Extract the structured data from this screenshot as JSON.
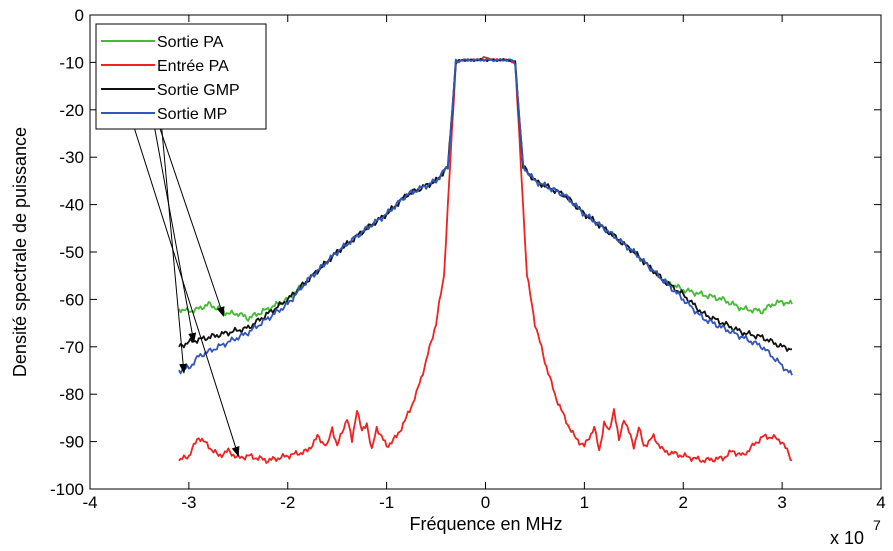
{
  "chart_data": {
    "type": "line",
    "xlabel": "Fréquence en MHz",
    "ylabel": "Densité spectrale de puissance",
    "x_multiplier_label": "x 10",
    "x_multiplier_exponent": "7",
    "xlim": [
      -4,
      4
    ],
    "ylim": [
      -100,
      0
    ],
    "x_ticks": [
      "-4",
      "-3",
      "-2",
      "-1",
      "0",
      "1",
      "2",
      "3",
      "4"
    ],
    "y_ticks": [
      "0",
      "-10",
      "-20",
      "-30",
      "-40",
      "-50",
      "-60",
      "-70",
      "-80",
      "-90",
      "-100"
    ],
    "grid": false,
    "legend_position": "top-left",
    "series": [
      {
        "name": "Sortie PA",
        "color": "#44bb33",
        "x": [
          -3.1,
          -3.0,
          -2.9,
          -2.8,
          -2.7,
          -2.6,
          -2.5,
          -2.4,
          -2.2,
          -2.0,
          -1.8,
          -1.5,
          -1.2,
          -1.0,
          -0.8,
          -0.5,
          -0.38,
          -0.3,
          -0.25,
          0.25,
          0.3,
          0.38,
          0.5,
          0.8,
          1.0,
          1.2,
          1.5,
          1.8,
          1.9,
          2.0,
          2.2,
          2.4,
          2.5,
          2.6,
          2.8,
          2.9,
          3.0,
          3.1
        ],
        "y": [
          -62,
          -62.5,
          -62,
          -61,
          -62,
          -63,
          -63,
          -64,
          -62,
          -60,
          -56,
          -50,
          -45,
          -42,
          -38,
          -35,
          -32,
          -10,
          -9.5,
          -9.5,
          -10,
          -32,
          -35,
          -38,
          -42,
          -45,
          -50,
          -56,
          -57,
          -58,
          -59,
          -60,
          -61,
          -62,
          -62.5,
          -61,
          -60.5,
          -61
        ]
      },
      {
        "name": "Entrée PA",
        "color": "#ee2222",
        "x": [
          -3.1,
          -3.0,
          -2.9,
          -2.8,
          -2.7,
          -2.6,
          -2.5,
          -2.4,
          -2.2,
          -2.0,
          -1.8,
          -1.7,
          -1.6,
          -1.55,
          -1.5,
          -1.45,
          -1.4,
          -1.35,
          -1.3,
          -1.25,
          -1.2,
          -1.15,
          -1.1,
          -1.0,
          -0.9,
          -0.8,
          -0.7,
          -0.6,
          -0.5,
          -0.42,
          -0.38,
          -0.34,
          -0.3,
          -0.2,
          -0.1,
          0,
          0.1,
          0.2,
          0.3,
          0.34,
          0.38,
          0.42,
          0.5,
          0.6,
          0.7,
          0.8,
          0.9,
          1.0,
          1.1,
          1.15,
          1.2,
          1.25,
          1.3,
          1.35,
          1.4,
          1.45,
          1.5,
          1.55,
          1.6,
          1.7,
          1.8,
          2.0,
          2.2,
          2.4,
          2.5,
          2.6,
          2.7,
          2.8,
          2.9,
          3.0,
          3.1
        ],
        "y": [
          -94,
          -93,
          -89,
          -91,
          -93,
          -92,
          -93.5,
          -93,
          -94,
          -93,
          -92,
          -89,
          -91,
          -87,
          -91,
          -88,
          -85,
          -90,
          -83,
          -88,
          -86,
          -92,
          -87,
          -91,
          -89,
          -85,
          -80,
          -73,
          -65,
          -55,
          -40,
          -25,
          -10,
          -9.5,
          -9.5,
          -9,
          -9.5,
          -9.5,
          -10,
          -25,
          -40,
          -55,
          -65,
          -73,
          -80,
          -85,
          -89,
          -91,
          -87,
          -92,
          -86,
          -88,
          -83,
          -90,
          -85,
          -88,
          -91,
          -87,
          -91,
          -89,
          -92,
          -93,
          -94,
          -93.5,
          -92,
          -93,
          -91,
          -89,
          -89,
          -90,
          -94
        ]
      },
      {
        "name": "Sortie GMP",
        "color": "#111111",
        "x": [
          -3.1,
          -3.0,
          -2.9,
          -2.8,
          -2.7,
          -2.6,
          -2.5,
          -2.4,
          -2.2,
          -2.0,
          -1.8,
          -1.5,
          -1.2,
          -1.0,
          -0.8,
          -0.5,
          -0.38,
          -0.3,
          -0.25,
          0.25,
          0.3,
          0.38,
          0.5,
          0.8,
          1.0,
          1.2,
          1.5,
          1.8,
          2.0,
          2.2,
          2.4,
          2.5,
          2.6,
          2.8,
          2.9,
          3.0,
          3.1
        ],
        "y": [
          -70,
          -69,
          -68.5,
          -68,
          -67.5,
          -67,
          -66.5,
          -66,
          -63,
          -60,
          -56,
          -50,
          -45,
          -42,
          -38,
          -35,
          -32,
          -10,
          -9.5,
          -9.5,
          -10,
          -32,
          -35,
          -38,
          -42,
          -45,
          -50,
          -56,
          -59,
          -63,
          -65,
          -66,
          -67,
          -68,
          -69,
          -70,
          -70.5
        ]
      },
      {
        "name": "Sortie MP",
        "color": "#3355bb",
        "x": [
          -3.1,
          -3.0,
          -2.9,
          -2.8,
          -2.7,
          -2.6,
          -2.5,
          -2.4,
          -2.2,
          -2.0,
          -1.8,
          -1.5,
          -1.2,
          -1.0,
          -0.8,
          -0.5,
          -0.38,
          -0.3,
          -0.25,
          0.25,
          0.3,
          0.38,
          0.5,
          0.8,
          1.0,
          1.2,
          1.5,
          1.8,
          2.0,
          2.2,
          2.4,
          2.5,
          2.6,
          2.8,
          2.9,
          3.0,
          3.1
        ],
        "y": [
          -75,
          -74.5,
          -72,
          -71,
          -70,
          -69,
          -68,
          -67,
          -64,
          -61,
          -56,
          -50,
          -45,
          -42,
          -38,
          -35,
          -32,
          -10,
          -9.5,
          -9.5,
          -10,
          -32,
          -35,
          -38,
          -42,
          -45,
          -50,
          -56,
          -60,
          -64,
          -66,
          -67,
          -68,
          -70,
          -72,
          -74,
          -76
        ]
      }
    ],
    "annotation_arrows": [
      {
        "from": [
          -3.6,
          -5
        ],
        "to": [
          -2.65,
          -63.5
        ]
      },
      {
        "from": [
          -3.45,
          -12
        ],
        "to": [
          -2.95,
          -69
        ]
      },
      {
        "from": [
          -3.3,
          -18
        ],
        "to": [
          -3.05,
          -75.5
        ]
      },
      {
        "from": [
          -3.55,
          -24
        ],
        "to": [
          -2.5,
          -93
        ]
      }
    ]
  }
}
